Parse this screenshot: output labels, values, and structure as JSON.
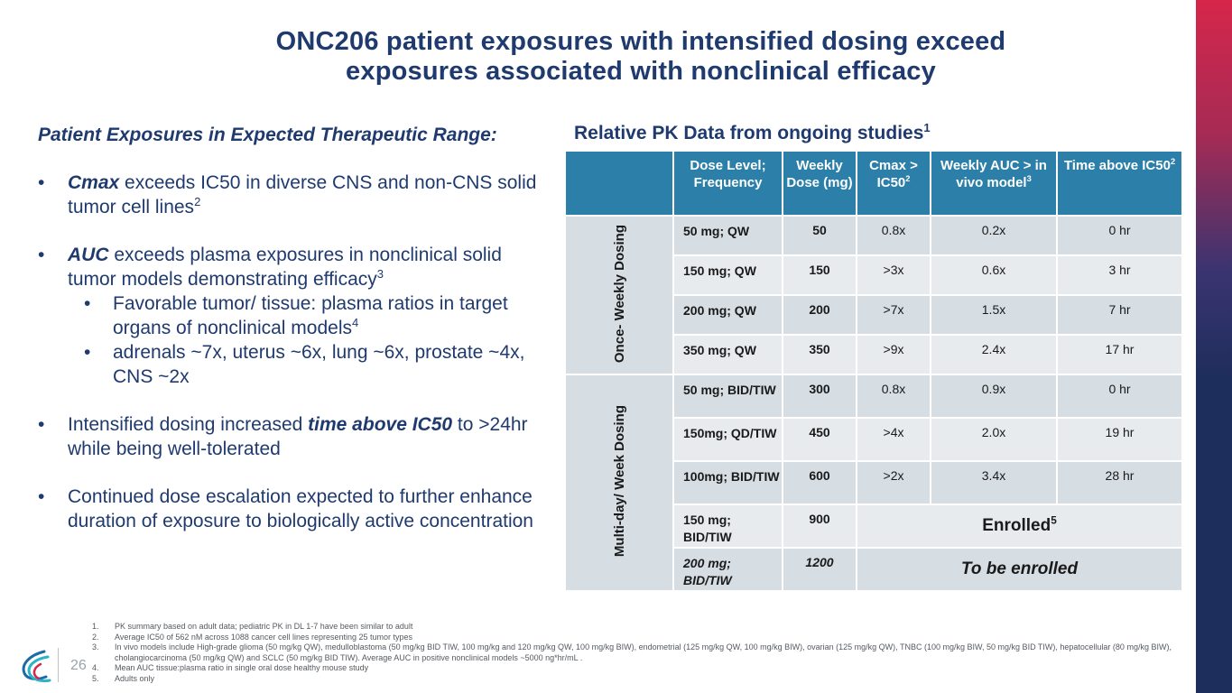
{
  "title": {
    "line1": "ONC206 patient exposures with intensified dosing exceed",
    "line2": "exposures associated with nonclinical efficacy"
  },
  "left": {
    "lead": "Patient Exposures in Expected Therapeutic Range:",
    "bullet_char": "•",
    "b1": {
      "bold": "Cmax",
      "text": " exceeds IC50 in diverse CNS and non-CNS solid tumor cell lines",
      "sup": "2"
    },
    "b2": {
      "bold": "AUC",
      "text": " exceeds plasma exposures in nonclinical solid tumor models demonstrating efficacy",
      "sup": "3"
    },
    "b2_sub1": {
      "text": "Favorable tumor/ tissue: plasma ratios in target organs of nonclinical models",
      "sup": "4"
    },
    "b2_sub2": {
      "text": "adrenals ~7x, uterus ~6x, lung ~6x, prostate ~4x, CNS ~2x"
    },
    "b3": {
      "pre": "Intensified dosing increased ",
      "bold": "time above IC50",
      "post": "  to >24hr while being well-tolerated"
    },
    "b4": {
      "text": "Continued dose escalation expected to further enhance duration of exposure to biologically active concentration"
    }
  },
  "pk": {
    "title": "Relative PK Data from ongoing studies",
    "title_sup": "1",
    "headers": {
      "dose_level": "Dose Level; Frequency",
      "weekly_dose": "Weekly Dose (mg)",
      "cmax": "Cmax > IC50",
      "cmax_sup": "2",
      "auc": "Weekly AUC > in vivo model",
      "auc_sup": "3",
      "time": "Time above IC50",
      "time_sup": "2"
    },
    "group1": "Once- Weekly Dosing",
    "group2": "Multi-day/ Week Dosing",
    "rows": [
      {
        "level": "50 mg; QW",
        "dose": "50",
        "cmax": "0.8x",
        "auc": "0.2x",
        "time": "0 hr"
      },
      {
        "level": "150 mg; QW",
        "dose": "150",
        "cmax": ">3x",
        "auc": "0.6x",
        "time": "3 hr"
      },
      {
        "level": "200 mg; QW",
        "dose": "200",
        "cmax": ">7x",
        "auc": "1.5x",
        "time": "7 hr"
      },
      {
        "level": "350 mg; QW",
        "dose": "350",
        "cmax": ">9x",
        "auc": "2.4x",
        "time": "17 hr"
      },
      {
        "level": "50 mg; BID/TIW",
        "dose": "300",
        "cmax": "0.8x",
        "auc": "0.9x",
        "time": "0 hr"
      },
      {
        "level": "150mg; QD/TIW",
        "dose": "450",
        "cmax": ">4x",
        "auc": "2.0x",
        "time": "19 hr"
      },
      {
        "level": "100mg; BID/TIW",
        "dose": "600",
        "cmax": ">2x",
        "auc": "3.4x",
        "time": "28 hr"
      },
      {
        "level": "150 mg; BID/TIW",
        "dose": "900",
        "status": "Enrolled",
        "status_sup": "5"
      },
      {
        "level": "200 mg; BID/TIW",
        "dose": "1200",
        "status": "To be enrolled"
      }
    ]
  },
  "footnotes": [
    {
      "n": "1.",
      "text": "PK summary based on adult data; pediatric PK in DL 1-7 have been similar to adult"
    },
    {
      "n": "2.",
      "text": "Average IC50 of 562 nM across 1088 cancer cell lines representing 25 tumor types"
    },
    {
      "n": "3.",
      "text": "In vivo models include High-grade glioma (50 mg/kg QW), medulloblastoma (50 mg/kg BID TIW, 100 mg/kg and 120 mg/kg QW, 100 mg/kg BIW), endometrial (125 mg/kg QW, 100 mg/kg BIW), ovarian (125 mg/kg QW), TNBC (100 mg/kg BIW, 50 mg/kg BID TIW), hepatocellular (80 mg/kg BIW), cholangiocarcinoma (50 mg/kg QW) and SCLC (50 mg/kg BID TIW). Average AUC in positive nonclinical models ~5000 ng*hr/mL ."
    },
    {
      "n": "4.",
      "text": "Mean AUC tissue:plasma ratio in single oral dose healthy mouse study"
    },
    {
      "n": "5.",
      "text": "Adults only"
    }
  ],
  "page_number": "26",
  "colors": {
    "title": "#1f3a6e",
    "header_blue": "#2b7fa8",
    "row_dark": "#d6dde3",
    "row_light": "#e7ebee",
    "side_bar_top": "#d6264a",
    "side_bar_bottom": "#1e2e5c"
  }
}
